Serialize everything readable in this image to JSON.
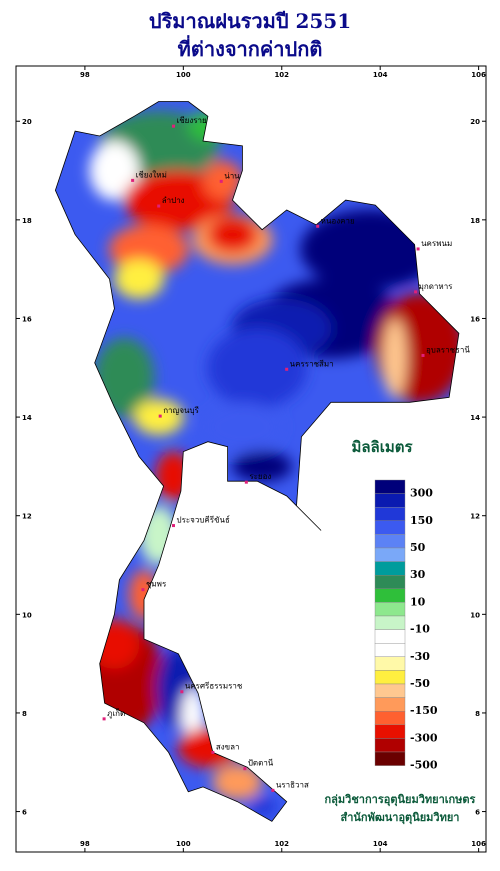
{
  "chart_data": {
    "type": "map",
    "title": "ปริมาณฝนรวมปี 2551",
    "subtitle": "ที่ต่างจากค่าปกติ",
    "xlim": [
      96.6,
      106.15
    ],
    "ylim": [
      5.18,
      21.12
    ],
    "xticks": [
      98,
      100,
      102,
      104,
      106
    ],
    "yticks": [
      6,
      8,
      10,
      12,
      14,
      16,
      18,
      20
    ],
    "legend_title": "มิลลิเมตร",
    "legend_labels": [
      "300",
      "150",
      "50",
      "30",
      "10",
      "-10",
      "-30",
      "-50",
      "-150",
      "-300",
      "-500"
    ],
    "legend_colors": [
      "#00007a",
      "#0a1ab0",
      "#2038d8",
      "#3c5af0",
      "#5c82f5",
      "#7aa8f8",
      "#009c9c",
      "#2e8b57",
      "#2fbf3a",
      "#8ee88e",
      "#c8f5c8",
      "#ffffff",
      "#ffffff",
      "#fff9a8",
      "#ffef40",
      "#ffc890",
      "#ff9a5a",
      "#ff6030",
      "#e81000",
      "#b00000",
      "#6a0000"
    ],
    "places": [
      {
        "name": "เชียงราย",
        "lon": 99.8,
        "lat": 19.9
      },
      {
        "name": "เชียงใหม่",
        "lon": 98.97,
        "lat": 18.8
      },
      {
        "name": "น่าน",
        "lon": 100.77,
        "lat": 18.78
      },
      {
        "name": "ลำปาง",
        "lon": 99.5,
        "lat": 18.28
      },
      {
        "name": "หนองคาย",
        "lon": 102.73,
        "lat": 17.87
      },
      {
        "name": "นครพนม",
        "lon": 104.77,
        "lat": 17.41
      },
      {
        "name": "มุกดาหาร",
        "lon": 104.72,
        "lat": 16.54
      },
      {
        "name": "อุบลราชธานี",
        "lon": 104.87,
        "lat": 15.25
      },
      {
        "name": "นครราชสีมา",
        "lon": 102.1,
        "lat": 14.97
      },
      {
        "name": "กาญจนบุรี",
        "lon": 99.53,
        "lat": 14.02
      },
      {
        "name": "ระยอง",
        "lon": 101.28,
        "lat": 12.68
      },
      {
        "name": "ประจวบคีรีขันธ์",
        "lon": 99.8,
        "lat": 11.8
      },
      {
        "name": "ชุมพร",
        "lon": 99.18,
        "lat": 10.5
      },
      {
        "name": "นครศรีธรรมราช",
        "lon": 99.97,
        "lat": 8.43
      },
      {
        "name": "ภูเก็ต",
        "lon": 98.39,
        "lat": 7.88
      },
      {
        "name": "สงขลา",
        "lon": 100.6,
        "lat": 7.2
      },
      {
        "name": "ปัตตานี",
        "lon": 101.25,
        "lat": 6.87
      },
      {
        "name": "นราธิวาส",
        "lon": 101.82,
        "lat": 6.43
      }
    ],
    "credit": [
      "กลุ่มวิชาการอุตุนิยมวิทยาเกษตร",
      "สำนักพัฒนาอุตุนิยมวิทยา"
    ]
  }
}
